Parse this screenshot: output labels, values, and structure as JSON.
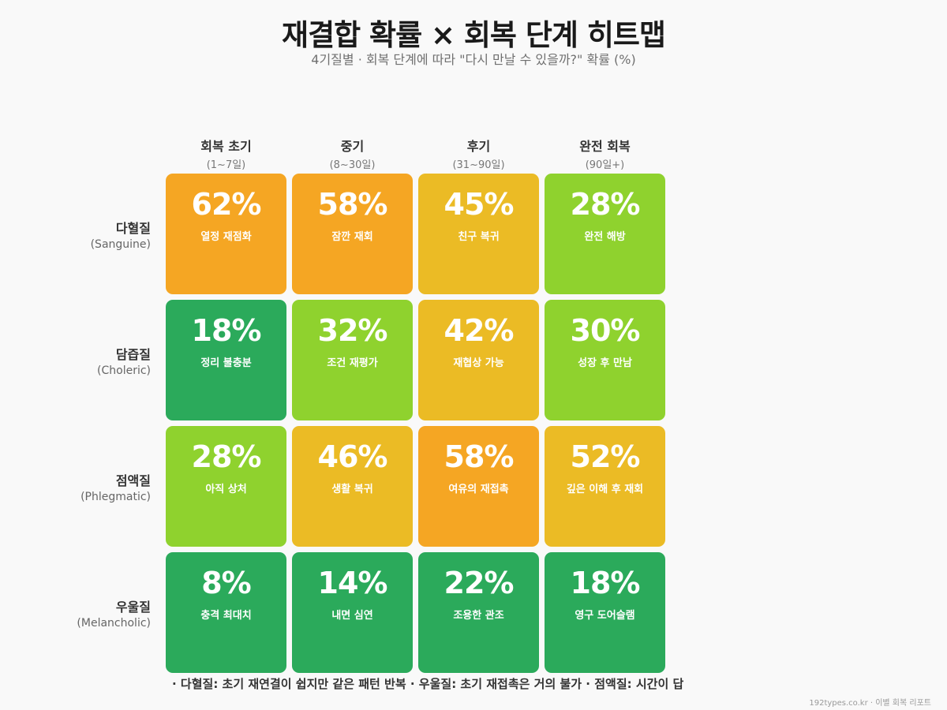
{
  "chart_data": {
    "type": "heatmap",
    "title": "재결합 확률 × 회복 단계 히트맵",
    "subtitle": "4기질별 · 회복 단계에 따라 \"다시 만날 수 있을까?\" 확률 (%)",
    "columns": [
      {
        "label": "회복 초기",
        "sub": "(1~7일)"
      },
      {
        "label": "중기",
        "sub": "(8~30일)"
      },
      {
        "label": "후기",
        "sub": "(31~90일)"
      },
      {
        "label": "완전 회복",
        "sub": "(90일+)"
      }
    ],
    "rows": [
      {
        "label": "다혈질",
        "sub": "(Sanguine)",
        "values": [
          62,
          58,
          45,
          28
        ],
        "tags": [
          "열정 재점화",
          "잠깐 재회",
          "친구 복귀",
          "완전 해방"
        ]
      },
      {
        "label": "담즙질",
        "sub": "(Choleric)",
        "values": [
          18,
          32,
          42,
          30
        ],
        "tags": [
          "정리 불충분",
          "조건 재평가",
          "재협상 가능",
          "성장 후 만남"
        ]
      },
      {
        "label": "점액질",
        "sub": "(Phlegmatic)",
        "values": [
          28,
          46,
          58,
          52
        ],
        "tags": [
          "아직 상처",
          "생활 복귀",
          "여유의 재접촉",
          "깊은 이해 후 재회"
        ]
      },
      {
        "label": "우울질",
        "sub": "(Melancholic)",
        "values": [
          8,
          14,
          22,
          18
        ],
        "tags": [
          "충격 최대치",
          "내면 심연",
          "조용한 관조",
          "영구 도어슬램"
        ]
      }
    ],
    "unit": "%",
    "colors": {
      "high": "#F5A623",
      "mid": "#EBBB25",
      "low": "#8FD22E",
      "lowest": "#2BAA5B"
    }
  },
  "footnote": "· 다혈질: 초기 재연결이 쉽지만 같은 패턴 반복 · 우울질: 초기 재접촉은 거의 불가 · 점액질: 시간이 답",
  "credit": "192types.co.kr · 이별 회복 리포트"
}
